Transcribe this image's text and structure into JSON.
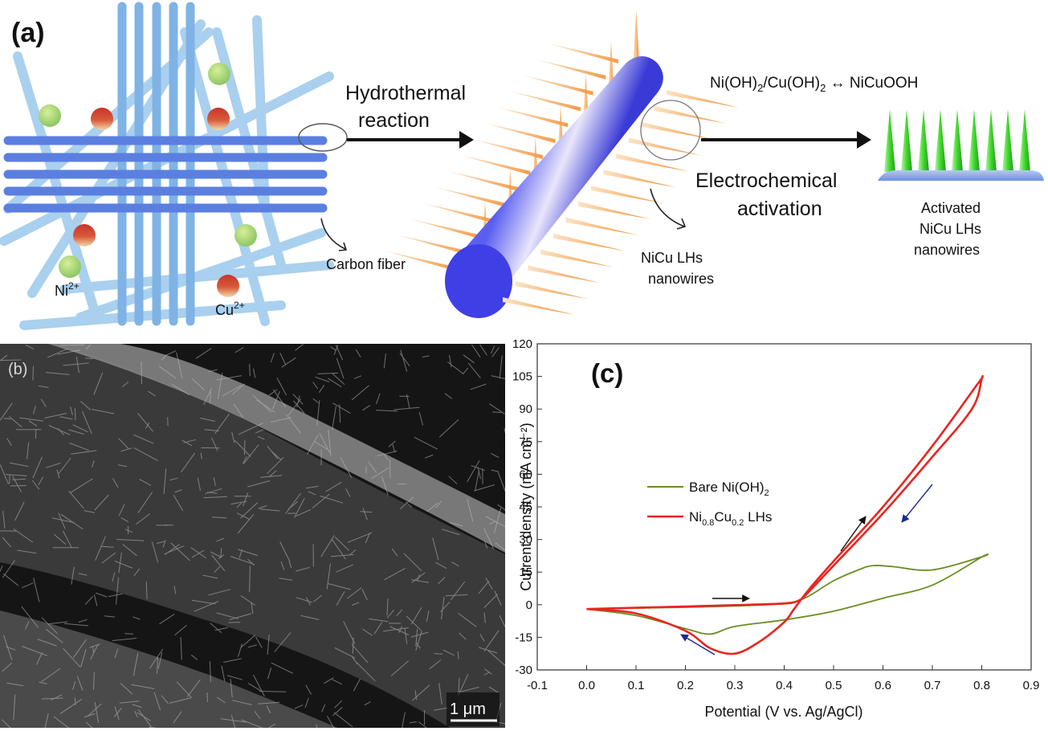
{
  "panel_a": {
    "label": "(a)",
    "step1_line1": "Hydrothermal",
    "step1_line2": "reaction",
    "step2_line1": "Electrochemical",
    "step2_line2": "activation",
    "reaction_left": "Ni(OH)",
    "reaction_sub1": "2",
    "reaction_mid": "/Cu(OH)",
    "reaction_sub2": "2",
    "reaction_right": " ↔ NiCuOOH",
    "ni_base": "Ni",
    "ni_sup": "2+",
    "cu_base": "Cu",
    "cu_sup": "2+",
    "carbon_fiber": "Carbon fiber",
    "nanowire_line1": "NiCu LHs",
    "nanowire_line2": "nanowires",
    "activated_line1": "Activated",
    "activated_line2": "NiCu LHs",
    "activated_line3": "nanowires",
    "colors": {
      "fiber_dark": "#5b7fe0",
      "fiber_light": "#9cc7ea",
      "ni_ion": "#a3d17a",
      "cu_ion": "#c8352b",
      "nanowire": "#f0a25a",
      "activated": "#3fd82a",
      "rod": "#5a5ff0"
    }
  },
  "panel_b": {
    "label": "(b)",
    "scalebar": "1 μm"
  },
  "panel_c": {
    "label": "(c)",
    "legend": {
      "s1_base": "Bare Ni(OH)",
      "s1_sub": "2",
      "s2_a": "Ni",
      "s2_sub1": "0.8",
      "s2_b": "Cu",
      "s2_sub2": "0.2",
      "s2_c": " LHs"
    }
  },
  "chart_data": {
    "type": "line",
    "xlabel": "Potential (V vs. Ag/AgCl)",
    "ylabel": "Current density (mA cm⁻²)",
    "xlim": [
      -0.1,
      0.9
    ],
    "ylim": [
      -30,
      120
    ],
    "xticks": [
      "-0.1",
      "0.0",
      "0.1",
      "0.2",
      "0.3",
      "0.4",
      "0.5",
      "0.6",
      "0.7",
      "0.8",
      "0.9"
    ],
    "yticks": [
      "-30",
      "-15",
      "0",
      "15",
      "30",
      "45",
      "60",
      "75",
      "90",
      "105",
      "120"
    ],
    "series": [
      {
        "name": "Bare Ni(OH)2",
        "color": "#6b8e23",
        "x": [
          0.0,
          0.1,
          0.2,
          0.3,
          0.4,
          0.42,
          0.45,
          0.5,
          0.55,
          0.58,
          0.62,
          0.7,
          0.8,
          0.8,
          0.7,
          0.6,
          0.5,
          0.4,
          0.3,
          0.25,
          0.2,
          0.1,
          0.0
        ],
        "y": [
          -2,
          -1.6,
          -1.2,
          -0.6,
          0.4,
          1.2,
          4,
          11,
          16,
          18,
          17.5,
          16,
          22,
          22,
          9,
          3,
          -3,
          -7,
          -10,
          -13.5,
          -11,
          -5,
          -2
        ]
      },
      {
        "name": "Ni0.8Cu0.2 LHs",
        "color": "#e8251f",
        "x": [
          0.0,
          0.1,
          0.2,
          0.3,
          0.4,
          0.43,
          0.45,
          0.5,
          0.6,
          0.7,
          0.78,
          0.8,
          0.8,
          0.79,
          0.7,
          0.6,
          0.5,
          0.45,
          0.42,
          0.4,
          0.35,
          0.3,
          0.25,
          0.2,
          0.1,
          0.0
        ],
        "y": [
          -2,
          -1.4,
          -0.8,
          -0.2,
          0.6,
          2,
          6,
          18,
          42,
          68,
          90,
          104,
          104,
          101,
          73,
          45,
          20,
          7,
          -2,
          -8,
          -17,
          -22.5,
          -20,
          -12,
          -4,
          -2
        ]
      }
    ],
    "annotations": [
      "arrows indicating scan direction"
    ]
  }
}
